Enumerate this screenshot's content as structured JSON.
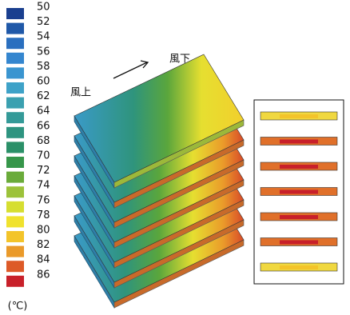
{
  "legend": {
    "unit": "(℃)",
    "entries": [
      {
        "value": 50,
        "color": "#1a3f8f"
      },
      {
        "value": 52,
        "color": "#1f58a8"
      },
      {
        "value": 54,
        "color": "#2a6fbf"
      },
      {
        "value": 56,
        "color": "#3486cf"
      },
      {
        "value": 58,
        "color": "#3a95d0"
      },
      {
        "value": 60,
        "color": "#3ea2c8"
      },
      {
        "value": 62,
        "color": "#3ba0b0"
      },
      {
        "value": 64,
        "color": "#349a98"
      },
      {
        "value": 66,
        "color": "#2e9480"
      },
      {
        "value": 68,
        "color": "#2b9068"
      },
      {
        "value": 70,
        "color": "#36964a"
      },
      {
        "value": 72,
        "color": "#6aab3a"
      },
      {
        "value": 74,
        "color": "#9cc23a"
      },
      {
        "value": 76,
        "color": "#d6de30"
      },
      {
        "value": 78,
        "color": "#f0e22e"
      },
      {
        "value": 80,
        "color": "#f3c42a"
      },
      {
        "value": 82,
        "color": "#ea9a2a"
      },
      {
        "value": 84,
        "color": "#dd5a28"
      },
      {
        "value": 86,
        "color": "#c8202a"
      }
    ]
  },
  "annotations": {
    "upwind": "風上",
    "downwind": "風下"
  }
}
